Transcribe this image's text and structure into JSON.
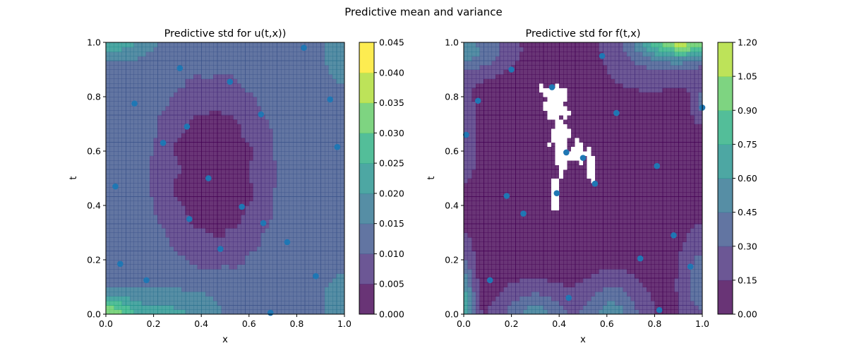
{
  "figure": {
    "suptitle": "Predictive mean and variance"
  },
  "chart_data": [
    {
      "type": "heatmap",
      "title": "Predictive std for u(t,x))",
      "xlabel": "x",
      "ylabel": "t",
      "xlim": [
        0.0,
        1.0
      ],
      "ylim": [
        0.0,
        1.0
      ],
      "x_ticks": [
        "0.0",
        "0.2",
        "0.4",
        "0.6",
        "0.8",
        "1.0"
      ],
      "y_ticks": [
        "0.0",
        "0.2",
        "0.4",
        "0.6",
        "0.8",
        "1.0"
      ],
      "colorbar": {
        "levels": [
          0.0,
          0.005,
          0.01,
          0.015,
          0.02,
          0.025,
          0.03,
          0.035,
          0.04,
          0.045
        ],
        "tick_labels": [
          "0.000",
          "0.005",
          "0.010",
          "0.015",
          "0.020",
          "0.025",
          "0.030",
          "0.035",
          "0.040",
          "0.045"
        ]
      },
      "points": [
        {
          "x": 0.83,
          "y": 0.98
        },
        {
          "x": 0.31,
          "y": 0.905
        },
        {
          "x": 0.52,
          "y": 0.855
        },
        {
          "x": 0.12,
          "y": 0.775
        },
        {
          "x": 0.94,
          "y": 0.79
        },
        {
          "x": 0.65,
          "y": 0.735
        },
        {
          "x": 0.34,
          "y": 0.69
        },
        {
          "x": 0.24,
          "y": 0.63
        },
        {
          "x": 0.97,
          "y": 0.615
        },
        {
          "x": 0.43,
          "y": 0.5
        },
        {
          "x": 0.04,
          "y": 0.47
        },
        {
          "x": 0.57,
          "y": 0.395
        },
        {
          "x": 0.35,
          "y": 0.35
        },
        {
          "x": 0.66,
          "y": 0.335
        },
        {
          "x": 0.76,
          "y": 0.265
        },
        {
          "x": 0.48,
          "y": 0.24
        },
        {
          "x": 0.06,
          "y": 0.185
        },
        {
          "x": 0.88,
          "y": 0.14
        },
        {
          "x": 0.17,
          "y": 0.125
        },
        {
          "x": 0.69,
          "y": 0.005
        }
      ]
    },
    {
      "type": "heatmap",
      "title": "Predictive std for f(t,x)",
      "xlabel": "x",
      "ylabel": "t",
      "xlim": [
        0.0,
        1.0
      ],
      "ylim": [
        0.0,
        1.0
      ],
      "x_ticks": [
        "0.0",
        "0.2",
        "0.4",
        "0.6",
        "0.8",
        "1.0"
      ],
      "y_ticks": [
        "0.0",
        "0.2",
        "0.4",
        "0.6",
        "0.8",
        "1.0"
      ],
      "colorbar": {
        "levels": [
          0.0,
          0.15,
          0.3,
          0.45,
          0.6,
          0.75,
          0.9,
          1.05,
          1.2
        ],
        "tick_labels": [
          "0.00",
          "0.15",
          "0.30",
          "0.45",
          "0.60",
          "0.75",
          "0.90",
          "1.05",
          "1.20"
        ]
      },
      "points": [
        {
          "x": 0.58,
          "y": 0.95
        },
        {
          "x": 0.2,
          "y": 0.9
        },
        {
          "x": 0.37,
          "y": 0.835
        },
        {
          "x": 0.06,
          "y": 0.785
        },
        {
          "x": 0.64,
          "y": 0.74
        },
        {
          "x": 1.0,
          "y": 0.76
        },
        {
          "x": 0.01,
          "y": 0.66
        },
        {
          "x": 0.43,
          "y": 0.595
        },
        {
          "x": 0.5,
          "y": 0.575
        },
        {
          "x": 0.81,
          "y": 0.545
        },
        {
          "x": 0.55,
          "y": 0.48
        },
        {
          "x": 0.39,
          "y": 0.445
        },
        {
          "x": 0.18,
          "y": 0.435
        },
        {
          "x": 0.25,
          "y": 0.37
        },
        {
          "x": 0.88,
          "y": 0.29
        },
        {
          "x": 0.74,
          "y": 0.205
        },
        {
          "x": 0.95,
          "y": 0.175
        },
        {
          "x": 0.11,
          "y": 0.125
        },
        {
          "x": 0.44,
          "y": 0.06
        },
        {
          "x": 0.82,
          "y": 0.015
        }
      ]
    }
  ],
  "colors": {
    "viridis_levels": [
      "#440154",
      "#472d7b",
      "#3b528b",
      "#2c728e",
      "#21918c",
      "#28ae80",
      "#5ec962",
      "#addc30",
      "#fde725"
    ],
    "point": "#1f77b4"
  }
}
